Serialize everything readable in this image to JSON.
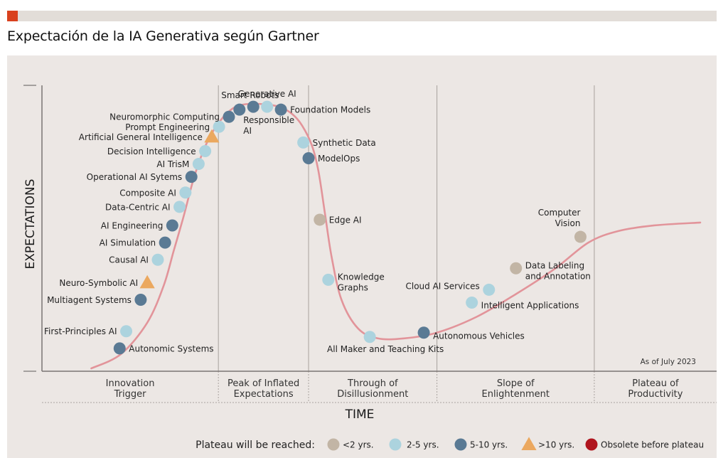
{
  "header": {
    "title": "Expectación de la IA Generativa según Gartner"
  },
  "chart_data": {
    "type": "scatter",
    "title": "Expectación de la IA Generativa según Gartner",
    "xlabel": "TIME",
    "ylabel": "EXPECTATIONS",
    "note": "As of July 2023",
    "phases": [
      {
        "label": [
          "Innovation",
          "Trigger"
        ],
        "x_start": 0.0,
        "x_end": 0.268
      },
      {
        "label": [
          "Peak of Inflated",
          "Expectations"
        ],
        "x_start": 0.268,
        "x_end": 0.405
      },
      {
        "label": [
          "Through of",
          "Disillusionment"
        ],
        "x_start": 0.405,
        "x_end": 0.6
      },
      {
        "label": [
          "Slope of",
          "Enlightenment"
        ],
        "x_start": 0.6,
        "x_end": 0.839
      },
      {
        "label": [
          "Plateau of",
          "Productivity"
        ],
        "x_start": 0.839,
        "x_end": 1.0
      }
    ],
    "legend": {
      "title": "Plateau will be reached:",
      "placement": "bottom-right",
      "entries": [
        {
          "key": "lt2",
          "label": "<2 yrs.",
          "shape": "circle",
          "color": "#c2b5a5"
        },
        {
          "key": "2to5",
          "label": "2-5 yrs.",
          "shape": "circle",
          "color": "#acd3de"
        },
        {
          "key": "5to10",
          "label": "5-10 yrs.",
          "shape": "circle",
          "color": "#5a7a94"
        },
        {
          "key": "gt10",
          "label": ">10 yrs.",
          "shape": "triangle",
          "color": "#eba85f"
        },
        {
          "key": "obsolete",
          "label": "Obsolete before plateau",
          "shape": "circle",
          "color": "#b0151e"
        }
      ]
    },
    "curve_color": "#e2949a",
    "curve": [
      [
        0.075,
        0.01
      ],
      [
        0.12,
        0.06
      ],
      [
        0.16,
        0.17
      ],
      [
        0.185,
        0.3
      ],
      [
        0.2,
        0.42
      ],
      [
        0.215,
        0.54
      ],
      [
        0.23,
        0.67
      ],
      [
        0.245,
        0.77
      ],
      [
        0.26,
        0.84
      ],
      [
        0.28,
        0.9
      ],
      [
        0.3,
        0.93
      ],
      [
        0.33,
        0.935
      ],
      [
        0.36,
        0.925
      ],
      [
        0.38,
        0.9
      ],
      [
        0.395,
        0.86
      ],
      [
        0.41,
        0.79
      ],
      [
        0.42,
        0.7
      ],
      [
        0.43,
        0.55
      ],
      [
        0.44,
        0.4
      ],
      [
        0.455,
        0.25
      ],
      [
        0.48,
        0.15
      ],
      [
        0.51,
        0.115
      ],
      [
        0.55,
        0.115
      ],
      [
        0.6,
        0.135
      ],
      [
        0.66,
        0.19
      ],
      [
        0.72,
        0.27
      ],
      [
        0.78,
        0.36
      ],
      [
        0.83,
        0.45
      ],
      [
        0.875,
        0.49
      ],
      [
        0.93,
        0.51
      ],
      [
        1.0,
        0.52
      ]
    ],
    "technologies": [
      {
        "name": "Autonomic Systems",
        "x": 0.118,
        "y": 0.08,
        "category": "5to10",
        "label_side": "right"
      },
      {
        "name": "First-Principles AI",
        "x": 0.128,
        "y": 0.14,
        "category": "2to5",
        "label_side": "left"
      },
      {
        "name": "Multiagent Systems",
        "x": 0.15,
        "y": 0.25,
        "category": "5to10",
        "label_side": "left"
      },
      {
        "name": "Neuro-Symbolic AI",
        "x": 0.16,
        "y": 0.31,
        "category": "gt10",
        "label_side": "left"
      },
      {
        "name": "Causal AI",
        "x": 0.176,
        "y": 0.39,
        "category": "2to5",
        "label_side": "left"
      },
      {
        "name": "AI Simulation",
        "x": 0.187,
        "y": 0.45,
        "category": "5to10",
        "label_side": "left"
      },
      {
        "name": "AI Engineering",
        "x": 0.198,
        "y": 0.51,
        "category": "5to10",
        "label_side": "left"
      },
      {
        "name": "Data-Centric AI",
        "x": 0.209,
        "y": 0.575,
        "category": "2to5",
        "label_side": "left"
      },
      {
        "name": "Composite AI",
        "x": 0.218,
        "y": 0.625,
        "category": "2to5",
        "label_side": "left"
      },
      {
        "name": "Operational AI Sytems",
        "x": 0.227,
        "y": 0.68,
        "category": "5to10",
        "label_side": "left"
      },
      {
        "name": "AI TrisM",
        "x": 0.238,
        "y": 0.725,
        "category": "2to5",
        "label_side": "left"
      },
      {
        "name": "Decision Intelligence",
        "x": 0.248,
        "y": 0.77,
        "category": "2to5",
        "label_side": "left"
      },
      {
        "name": "Artificial General Intelligence",
        "x": 0.258,
        "y": 0.82,
        "category": "gt10",
        "label_side": "left"
      },
      {
        "name": "Prompt Engineering",
        "x": 0.269,
        "y": 0.855,
        "category": "2to5",
        "label_side": "left"
      },
      {
        "name": "Neuromorphic Computing",
        "x": 0.284,
        "y": 0.89,
        "category": "5to10",
        "label_side": "left"
      },
      {
        "name": "Smart Robots",
        "x": 0.3,
        "y": 0.915,
        "category": "5to10",
        "label_side": "top"
      },
      {
        "name": "Responsible AI",
        "x": 0.321,
        "y": 0.925,
        "category": "5to10",
        "label_side": "bottom"
      },
      {
        "name": "Generative AI",
        "x": 0.342,
        "y": 0.925,
        "category": "2to5",
        "label_side": "top"
      },
      {
        "name": "Foundation Models",
        "x": 0.363,
        "y": 0.915,
        "category": "5to10",
        "label_side": "right"
      },
      {
        "name": "Synthetic Data",
        "x": 0.397,
        "y": 0.8,
        "category": "2to5",
        "label_side": "right"
      },
      {
        "name": "ModelOps",
        "x": 0.405,
        "y": 0.745,
        "category": "5to10",
        "label_side": "right"
      },
      {
        "name": "Edge AI",
        "x": 0.422,
        "y": 0.53,
        "category": "lt2",
        "label_side": "right"
      },
      {
        "name": "Knowledge Graphs",
        "x": 0.435,
        "y": 0.32,
        "category": "2to5",
        "label_side": "right"
      },
      {
        "name": "All Maker and Teaching Kits",
        "x": 0.498,
        "y": 0.12,
        "category": "2to5",
        "label_side": "bottom"
      },
      {
        "name": "Autonomous Vehicles",
        "x": 0.58,
        "y": 0.135,
        "category": "5to10",
        "label_side": "right"
      },
      {
        "name": "Intelligent Applications",
        "x": 0.653,
        "y": 0.24,
        "category": "2to5",
        "label_side": "right"
      },
      {
        "name": "Cloud AI Services",
        "x": 0.679,
        "y": 0.285,
        "category": "2to5",
        "label_side": "left"
      },
      {
        "name": "Data Labeling and Annotation",
        "x": 0.72,
        "y": 0.36,
        "category": "lt2",
        "label_side": "right"
      },
      {
        "name": "Computer Vision",
        "x": 0.818,
        "y": 0.47,
        "category": "lt2",
        "label_side": "top"
      }
    ]
  }
}
